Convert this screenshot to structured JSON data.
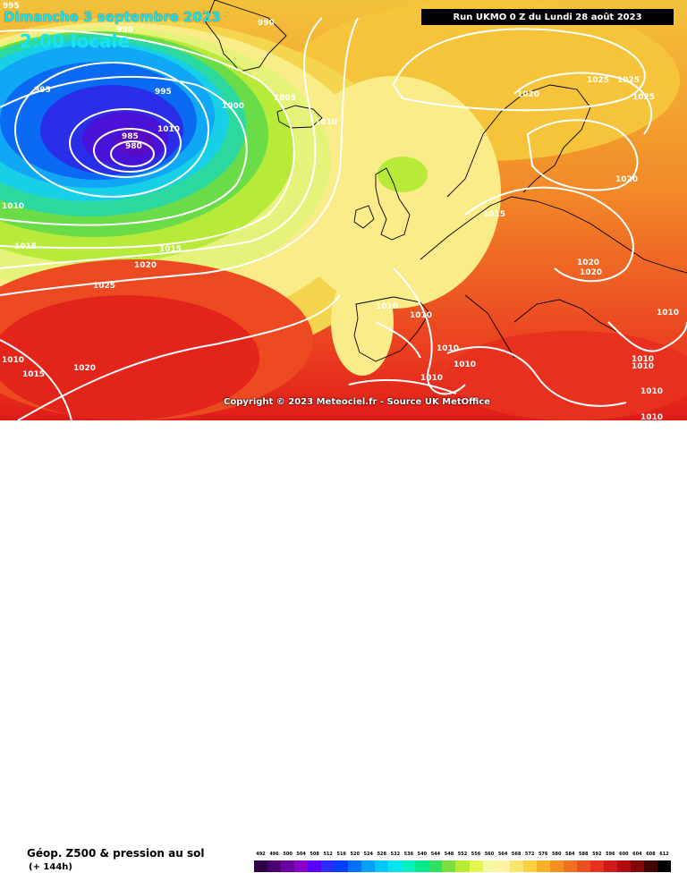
{
  "header": {
    "date": "Dimanche 3 septembre 2023",
    "time": "2:00 locale",
    "run": "Run UKMO 0 Z du Lundi 28 août 2023"
  },
  "copyright": "Copyright © 2023 Meteociel.fr - Source UK MetOffice",
  "footer": {
    "product": "Géop. Z500 & pression au sol",
    "range": "(+ 144h)"
  },
  "scale": {
    "labels": [
      "492",
      "496",
      "500",
      "504",
      "508",
      "512",
      "516",
      "520",
      "524",
      "528",
      "532",
      "536",
      "540",
      "544",
      "548",
      "552",
      "556",
      "560",
      "564",
      "568",
      "572",
      "576",
      "580",
      "584",
      "588",
      "592",
      "596",
      "600",
      "604",
      "608",
      "612"
    ],
    "colors": [
      "#2b0047",
      "#4a006e",
      "#6a00a0",
      "#8b00c8",
      "#5a00ff",
      "#2c2cff",
      "#0040ff",
      "#0070ff",
      "#00a0ff",
      "#00c8ff",
      "#00e4f0",
      "#00f0c0",
      "#00e88a",
      "#30e060",
      "#7ae040",
      "#b8ec30",
      "#e6f550",
      "#f6f8a0",
      "#fff4a0",
      "#fde470",
      "#fcd040",
      "#f8b028",
      "#f49020",
      "#f07020",
      "#ec5020",
      "#e83020",
      "#d01818",
      "#b00c10",
      "#800808",
      "#400404",
      "#000000"
    ]
  },
  "isobars": [
    "995",
    "990",
    "990",
    "995",
    "985",
    "980",
    "1000",
    "1005",
    "1010",
    "995",
    "1010",
    "1015",
    "1015",
    "1020",
    "1025",
    "1010",
    "1015",
    "1020",
    "1020",
    "1025",
    "1025",
    "1025",
    "1020",
    "1015",
    "1020",
    "1020",
    "1010",
    "1010",
    "1010",
    "1010",
    "1010",
    "1010",
    "1010",
    "1010",
    "1010",
    "1010",
    "1010"
  ]
}
